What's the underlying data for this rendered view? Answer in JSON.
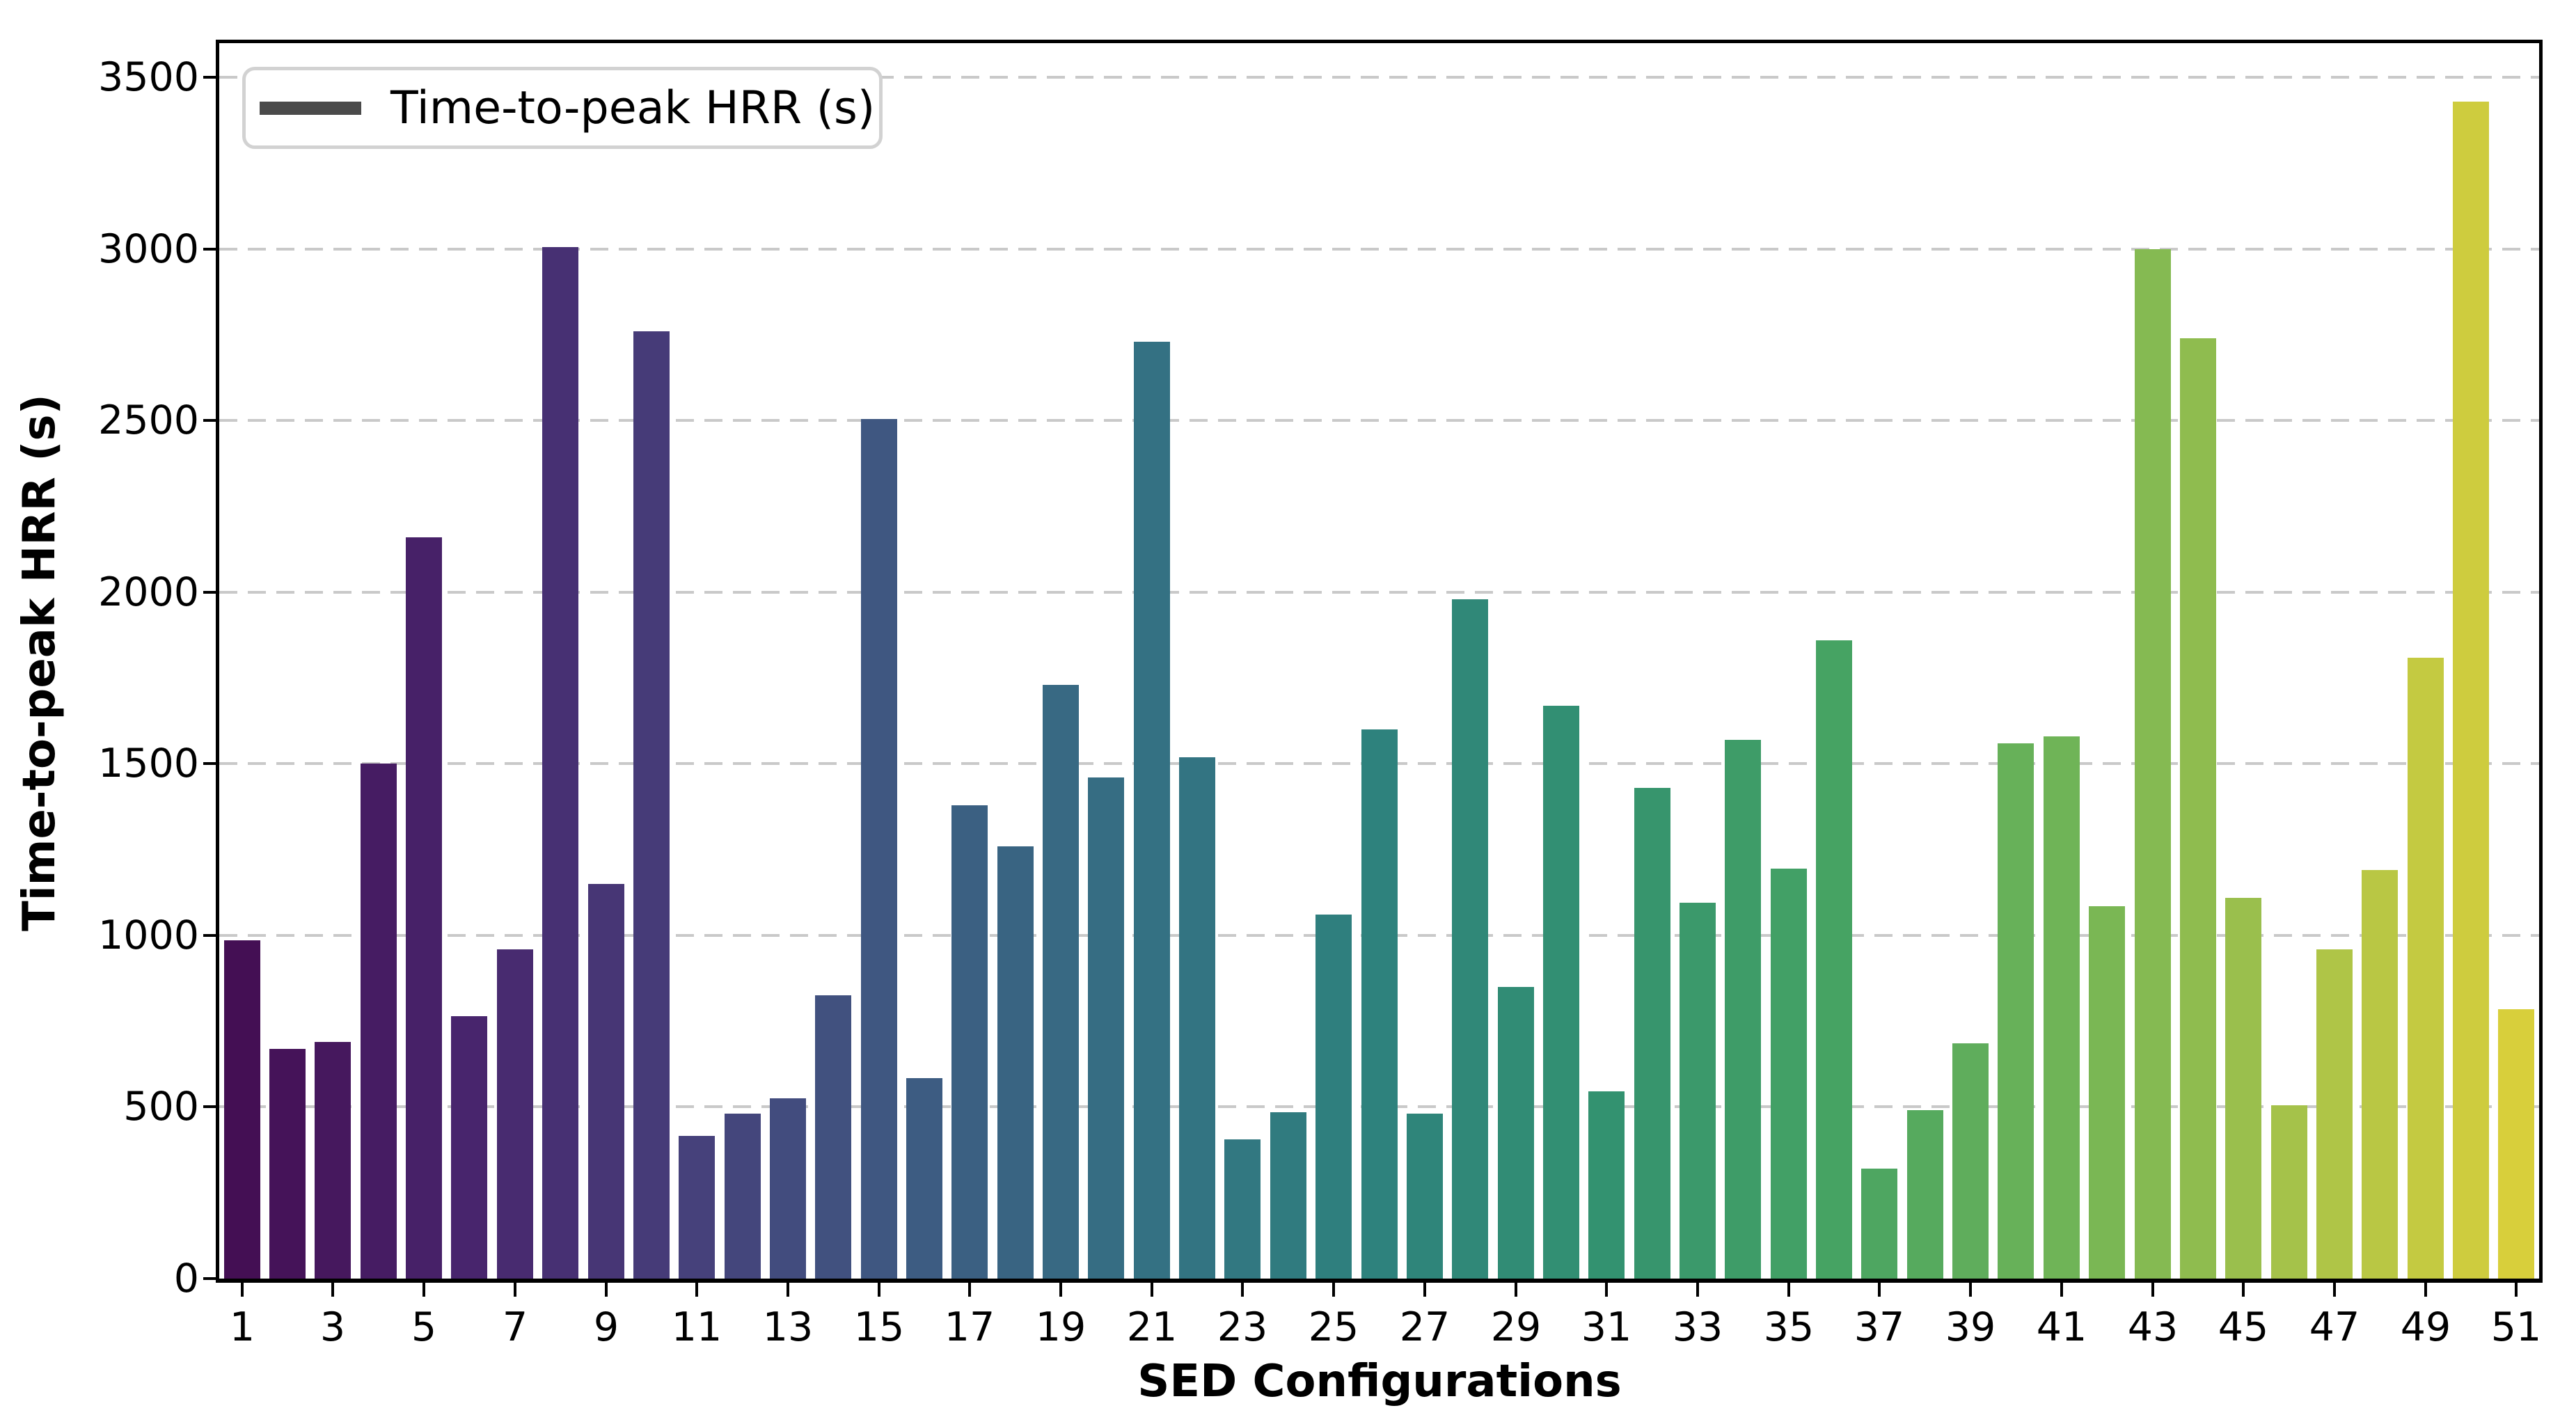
{
  "figure": {
    "background": "#ffffff"
  },
  "chart_data": {
    "type": "bar",
    "title": "",
    "xlabel": "SED Configurations",
    "ylabel": "Time-to-peak HRR (s)",
    "legend": {
      "position": "upper-left",
      "entries": [
        {
          "label": "Time-to-peak HRR (s)",
          "swatch_color": "#4a4a4a"
        }
      ]
    },
    "x": [
      1,
      2,
      3,
      4,
      5,
      6,
      7,
      8,
      9,
      10,
      11,
      12,
      13,
      14,
      15,
      16,
      17,
      18,
      19,
      20,
      21,
      22,
      23,
      24,
      25,
      26,
      27,
      28,
      29,
      30,
      31,
      32,
      33,
      34,
      35,
      36,
      37,
      38,
      39,
      40,
      41,
      42,
      43,
      44,
      45,
      46,
      47,
      48,
      49,
      50,
      51
    ],
    "values": [
      985,
      670,
      690,
      1500,
      2160,
      765,
      960,
      3005,
      1150,
      2760,
      415,
      480,
      525,
      825,
      2505,
      585,
      1380,
      1260,
      1730,
      1460,
      2730,
      1520,
      405,
      485,
      1060,
      1600,
      480,
      1980,
      850,
      1670,
      545,
      1430,
      1095,
      1570,
      1195,
      1860,
      320,
      490,
      685,
      1560,
      1580,
      1085,
      3000,
      2740,
      1110,
      505,
      960,
      1190,
      1810,
      3430,
      785
    ],
    "ylim": [
      0,
      3600
    ],
    "yticks": [
      0,
      500,
      1000,
      1500,
      2000,
      2500,
      3000,
      3500
    ],
    "xticks": [
      1,
      3,
      5,
      7,
      9,
      11,
      13,
      15,
      17,
      19,
      21,
      23,
      25,
      27,
      29,
      31,
      33,
      35,
      37,
      39,
      41,
      43,
      45,
      47,
      49,
      51
    ],
    "grid": {
      "axis": "y",
      "style": "dashed",
      "color": "#c9c9c9"
    },
    "bar_colormap_stops": [
      [
        0.0,
        "#440f54"
      ],
      [
        0.1,
        "#48256d"
      ],
      [
        0.2,
        "#46417b"
      ],
      [
        0.3,
        "#3d5c82"
      ],
      [
        0.4,
        "#347183"
      ],
      [
        0.5,
        "#2e827d"
      ],
      [
        0.6,
        "#339270"
      ],
      [
        0.7,
        "#46a363"
      ],
      [
        0.8,
        "#6fb457"
      ],
      [
        0.9,
        "#a5c24a"
      ],
      [
        1.0,
        "#d8cf3b"
      ]
    ]
  }
}
